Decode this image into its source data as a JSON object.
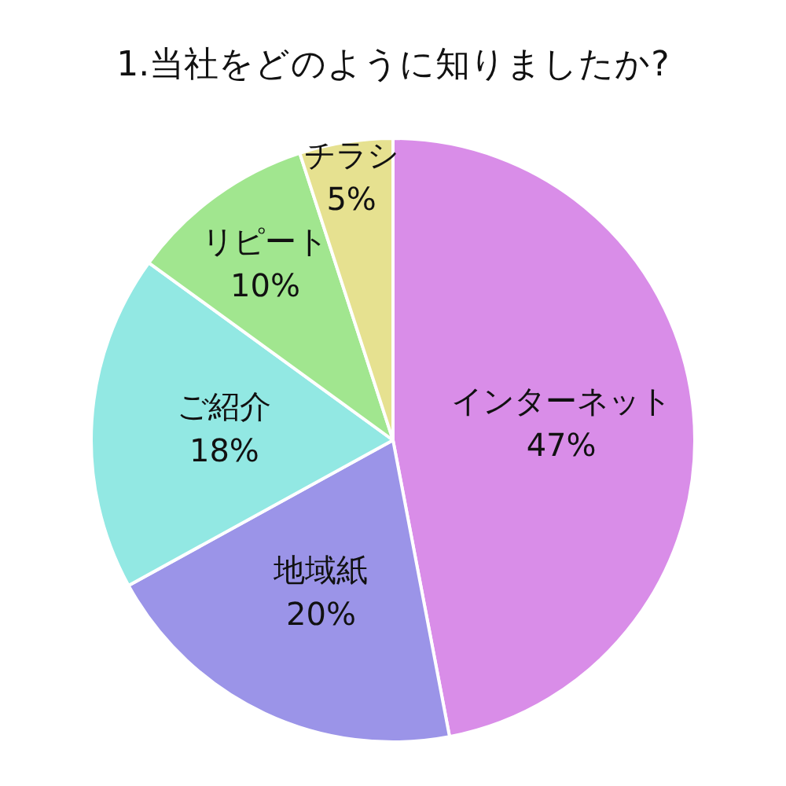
{
  "chart_data": {
    "type": "pie",
    "title": "1.当社をどのように知りましたか?",
    "categories": [
      "インターネット",
      "地域紙",
      "ご紹介",
      "リピート",
      "チラシ"
    ],
    "values": [
      47,
      20,
      18,
      10,
      5
    ],
    "value_labels": [
      "47%",
      "20%",
      "18%",
      "10%",
      "5%"
    ],
    "colors": [
      "#d98de8",
      "#9b94e8",
      "#92e8e3",
      "#a1e68f",
      "#e6e190"
    ],
    "legend": false
  }
}
